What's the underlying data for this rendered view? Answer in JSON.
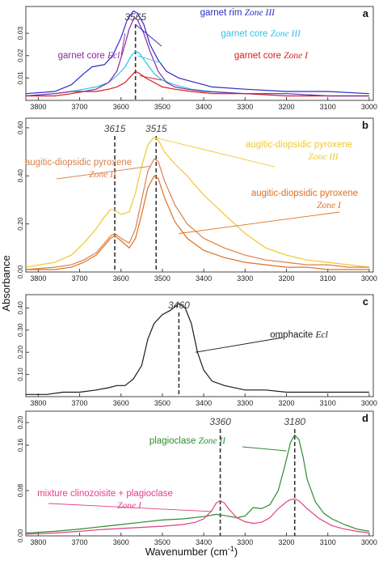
{
  "figure": {
    "ylabel": "Absorbance",
    "xlabel_main": "Wavenumber (cm",
    "xlabel_sup": "-1",
    "xlabel_end": ")"
  },
  "chart_data": [
    {
      "type": "line",
      "panel_letter": "a",
      "x_ticks": [
        3800,
        3700,
        3600,
        3500,
        3400,
        3300,
        3200,
        3100,
        3000
      ],
      "xlim": [
        3830,
        2990
      ],
      "ylim": [
        0.0,
        0.042
      ],
      "y_ticks": [
        0.01,
        0.02,
        0.03
      ],
      "peak_markers": [
        {
          "x": 3565,
          "label": "3565"
        }
      ],
      "series": [
        {
          "name": "garnet rim",
          "zone": "Zone III",
          "color": "#2b2bc8",
          "x": [
            3830,
            3760,
            3720,
            3690,
            3670,
            3640,
            3620,
            3600,
            3585,
            3570,
            3560,
            3545,
            3530,
            3510,
            3490,
            3460,
            3420,
            3380,
            3300,
            3200,
            3100,
            3000
          ],
          "y": [
            0.003,
            0.004,
            0.007,
            0.012,
            0.015,
            0.016,
            0.02,
            0.028,
            0.036,
            0.04,
            0.039,
            0.034,
            0.025,
            0.018,
            0.013,
            0.01,
            0.008,
            0.006,
            0.005,
            0.004,
            0.004,
            0.003
          ]
        },
        {
          "name": "garnet core",
          "zone": "Zone III",
          "color": "#2ec4e6",
          "x": [
            3830,
            3760,
            3720,
            3690,
            3660,
            3630,
            3610,
            3590,
            3575,
            3565,
            3555,
            3540,
            3520,
            3500,
            3470,
            3430,
            3380,
            3300,
            3200,
            3100,
            3000
          ],
          "y": [
            0.002,
            0.003,
            0.004,
            0.005,
            0.006,
            0.008,
            0.011,
            0.015,
            0.02,
            0.022,
            0.021,
            0.017,
            0.012,
            0.009,
            0.007,
            0.005,
            0.004,
            0.003,
            0.003,
            0.002,
            0.002
          ]
        },
        {
          "name": "garnet core",
          "zone": "Zone I",
          "color": "#d81c1c",
          "x": [
            3830,
            3760,
            3720,
            3690,
            3660,
            3630,
            3610,
            3590,
            3575,
            3565,
            3555,
            3540,
            3520,
            3500,
            3470,
            3430,
            3380,
            3300,
            3200,
            3100,
            3000
          ],
          "y": [
            0.002,
            0.002,
            0.003,
            0.004,
            0.004,
            0.005,
            0.006,
            0.008,
            0.011,
            0.013,
            0.012,
            0.01,
            0.008,
            0.006,
            0.005,
            0.004,
            0.003,
            0.003,
            0.002,
            0.002,
            0.002
          ]
        },
        {
          "name": "garnet core",
          "zone": "Ecl",
          "color": "#8a2a9a",
          "x": [
            3830,
            3760,
            3720,
            3690,
            3660,
            3630,
            3610,
            3595,
            3580,
            3568,
            3560,
            3545,
            3530,
            3510,
            3490,
            3470,
            3440,
            3400,
            3300,
            3200,
            3100,
            3000
          ],
          "y": [
            0.002,
            0.003,
            0.004,
            0.004,
            0.005,
            0.008,
            0.013,
            0.022,
            0.032,
            0.037,
            0.036,
            0.03,
            0.022,
            0.013,
            0.008,
            0.006,
            0.005,
            0.004,
            0.003,
            0.003,
            0.002,
            0.002
          ]
        }
      ],
      "legend": [
        {
          "name": "garnet rim",
          "zone": "Zone III",
          "color": "#2b2bc8"
        },
        {
          "name": "garnet core",
          "zone": "Zone III",
          "color": "#2ec4e6"
        },
        {
          "name": "garnet core",
          "zone": "Zone I",
          "color": "#d81c1c"
        },
        {
          "name": "garnet core",
          "zone": "Ecl",
          "color": "#8a2a9a"
        }
      ]
    },
    {
      "type": "line",
      "panel_letter": "b",
      "x_ticks": [
        3800,
        3700,
        3600,
        3500,
        3400,
        3300,
        3200,
        3100,
        3000
      ],
      "xlim": [
        3830,
        2990
      ],
      "ylim": [
        0.0,
        0.64
      ],
      "y_ticks": [
        0.0,
        0.2,
        0.4,
        0.6
      ],
      "y_tick_labels": [
        "0.00",
        "0.20",
        "0.40",
        "0.60"
      ],
      "peak_markers": [
        {
          "x": 3615,
          "label": "3615"
        },
        {
          "x": 3515,
          "label": "3515"
        }
      ],
      "series": [
        {
          "name": "augitic-diopsidic pyroxene",
          "zone": "Zone III",
          "color": "#f0c830",
          "x": [
            3830,
            3760,
            3720,
            3690,
            3660,
            3640,
            3625,
            3615,
            3600,
            3580,
            3565,
            3550,
            3535,
            3520,
            3510,
            3495,
            3470,
            3440,
            3400,
            3350,
            3300,
            3250,
            3200,
            3150,
            3100,
            3050,
            3000
          ],
          "y": [
            0.02,
            0.04,
            0.07,
            0.12,
            0.18,
            0.23,
            0.26,
            0.26,
            0.24,
            0.25,
            0.33,
            0.44,
            0.53,
            0.56,
            0.55,
            0.5,
            0.45,
            0.4,
            0.32,
            0.24,
            0.16,
            0.1,
            0.07,
            0.05,
            0.04,
            0.03,
            0.02
          ]
        },
        {
          "name": "augitic-diopsidic pyroxene",
          "zone": "Zone II",
          "color": "#d9804a",
          "x": [
            3830,
            3760,
            3720,
            3690,
            3660,
            3640,
            3625,
            3615,
            3600,
            3580,
            3565,
            3550,
            3535,
            3520,
            3510,
            3495,
            3470,
            3440,
            3400,
            3350,
            3300,
            3250,
            3200,
            3150,
            3100,
            3050,
            3000
          ],
          "y": [
            0.01,
            0.02,
            0.03,
            0.05,
            0.08,
            0.12,
            0.15,
            0.16,
            0.14,
            0.12,
            0.18,
            0.3,
            0.42,
            0.47,
            0.46,
            0.38,
            0.28,
            0.2,
            0.14,
            0.1,
            0.07,
            0.05,
            0.04,
            0.03,
            0.03,
            0.02,
            0.02
          ]
        },
        {
          "name": "augitic-diopsidic pyroxene",
          "zone": "Zone I",
          "color": "#e07020",
          "x": [
            3830,
            3760,
            3720,
            3690,
            3660,
            3640,
            3625,
            3615,
            3600,
            3580,
            3565,
            3550,
            3535,
            3520,
            3510,
            3495,
            3470,
            3440,
            3400,
            3350,
            3300,
            3250,
            3200,
            3150,
            3100,
            3050,
            3000
          ],
          "y": [
            0.01,
            0.01,
            0.02,
            0.04,
            0.07,
            0.11,
            0.14,
            0.15,
            0.13,
            0.1,
            0.14,
            0.24,
            0.35,
            0.4,
            0.39,
            0.31,
            0.21,
            0.14,
            0.09,
            0.06,
            0.04,
            0.03,
            0.02,
            0.02,
            0.01,
            0.01,
            0.01
          ]
        }
      ],
      "legend": [
        {
          "name": "augitic-diopsidic pyroxene",
          "zone": "Zone III",
          "color": "#f0c830"
        },
        {
          "name": "augitic-diopsidic pyroxene",
          "zone": "Zone II",
          "color": "#d9804a"
        },
        {
          "name": "augitic-diopsidic pyroxene",
          "zone": "Zone I",
          "color": "#e07020"
        }
      ]
    },
    {
      "type": "line",
      "panel_letter": "c",
      "x_ticks": [
        3800,
        3700,
        3600,
        3500,
        3400,
        3300,
        3200,
        3100,
        3000
      ],
      "xlim": [
        3830,
        2990
      ],
      "ylim": [
        0.0,
        0.46
      ],
      "y_ticks": [
        0.1,
        0.2,
        0.3,
        0.4
      ],
      "y_tick_labels": [
        "0.10",
        "0.20",
        "0.30",
        "0.40"
      ],
      "peak_markers": [
        {
          "x": 3460,
          "label": "3460"
        }
      ],
      "series": [
        {
          "name": "omphacite",
          "zone": "Ecl",
          "color": "#1a1a1a",
          "x": [
            3830,
            3780,
            3740,
            3700,
            3660,
            3630,
            3610,
            3590,
            3570,
            3550,
            3535,
            3520,
            3500,
            3480,
            3460,
            3445,
            3430,
            3415,
            3400,
            3380,
            3350,
            3300,
            3250,
            3200,
            3150,
            3100,
            3050,
            3000
          ],
          "y": [
            0.01,
            0.01,
            0.02,
            0.02,
            0.03,
            0.04,
            0.05,
            0.05,
            0.08,
            0.14,
            0.26,
            0.33,
            0.37,
            0.39,
            0.42,
            0.4,
            0.33,
            0.2,
            0.12,
            0.07,
            0.05,
            0.03,
            0.03,
            0.02,
            0.02,
            0.02,
            0.02,
            0.02
          ]
        }
      ],
      "legend": [
        {
          "name": "omphacite",
          "zone": "Ecl",
          "color": "#1a1a1a"
        }
      ]
    },
    {
      "type": "line",
      "panel_letter": "d",
      "x_ticks": [
        3800,
        3700,
        3600,
        3500,
        3400,
        3300,
        3200,
        3100,
        3000
      ],
      "xlim": [
        3830,
        2990
      ],
      "ylim": [
        0.0,
        0.22
      ],
      "y_ticks": [
        0.0,
        0.08,
        0.16,
        0.2
      ],
      "y_tick_labels": [
        "0.00",
        "0.08",
        "0.16",
        "0.20"
      ],
      "peak_markers": [
        {
          "x": 3360,
          "label": "3360"
        },
        {
          "x": 3180,
          "label": "3180"
        }
      ],
      "series": [
        {
          "name": "plagioclase",
          "zone": "Zone II",
          "color": "#2e8b2e",
          "x": [
            3830,
            3760,
            3700,
            3650,
            3600,
            3550,
            3500,
            3450,
            3400,
            3370,
            3350,
            3320,
            3300,
            3280,
            3260,
            3240,
            3220,
            3205,
            3190,
            3180,
            3170,
            3160,
            3150,
            3130,
            3110,
            3090,
            3060,
            3030,
            3000
          ],
          "y": [
            0.005,
            0.008,
            0.012,
            0.016,
            0.02,
            0.024,
            0.028,
            0.03,
            0.034,
            0.038,
            0.036,
            0.032,
            0.035,
            0.05,
            0.048,
            0.055,
            0.08,
            0.12,
            0.165,
            0.178,
            0.17,
            0.14,
            0.1,
            0.06,
            0.04,
            0.03,
            0.02,
            0.012,
            0.008
          ]
        },
        {
          "name": "mixture clinozoisite + plagioclase",
          "zone": "Zone I",
          "color": "#e0408a",
          "x": [
            3830,
            3760,
            3700,
            3650,
            3600,
            3550,
            3500,
            3450,
            3420,
            3400,
            3380,
            3370,
            3360,
            3350,
            3340,
            3320,
            3300,
            3280,
            3260,
            3240,
            3220,
            3200,
            3190,
            3180,
            3170,
            3150,
            3120,
            3090,
            3060,
            3030,
            3000
          ],
          "y": [
            0.003,
            0.005,
            0.008,
            0.011,
            0.013,
            0.015,
            0.017,
            0.02,
            0.024,
            0.03,
            0.045,
            0.058,
            0.062,
            0.058,
            0.048,
            0.032,
            0.025,
            0.022,
            0.024,
            0.032,
            0.048,
            0.06,
            0.064,
            0.065,
            0.062,
            0.048,
            0.03,
            0.018,
            0.012,
            0.008,
            0.005
          ]
        }
      ],
      "legend": [
        {
          "name": "plagioclase",
          "zone": "Zone II",
          "color": "#2e8b2e"
        },
        {
          "name": "mixture clinozoisite + plagioclase",
          "zone": "Zone I",
          "color": "#e0408a"
        }
      ]
    }
  ]
}
